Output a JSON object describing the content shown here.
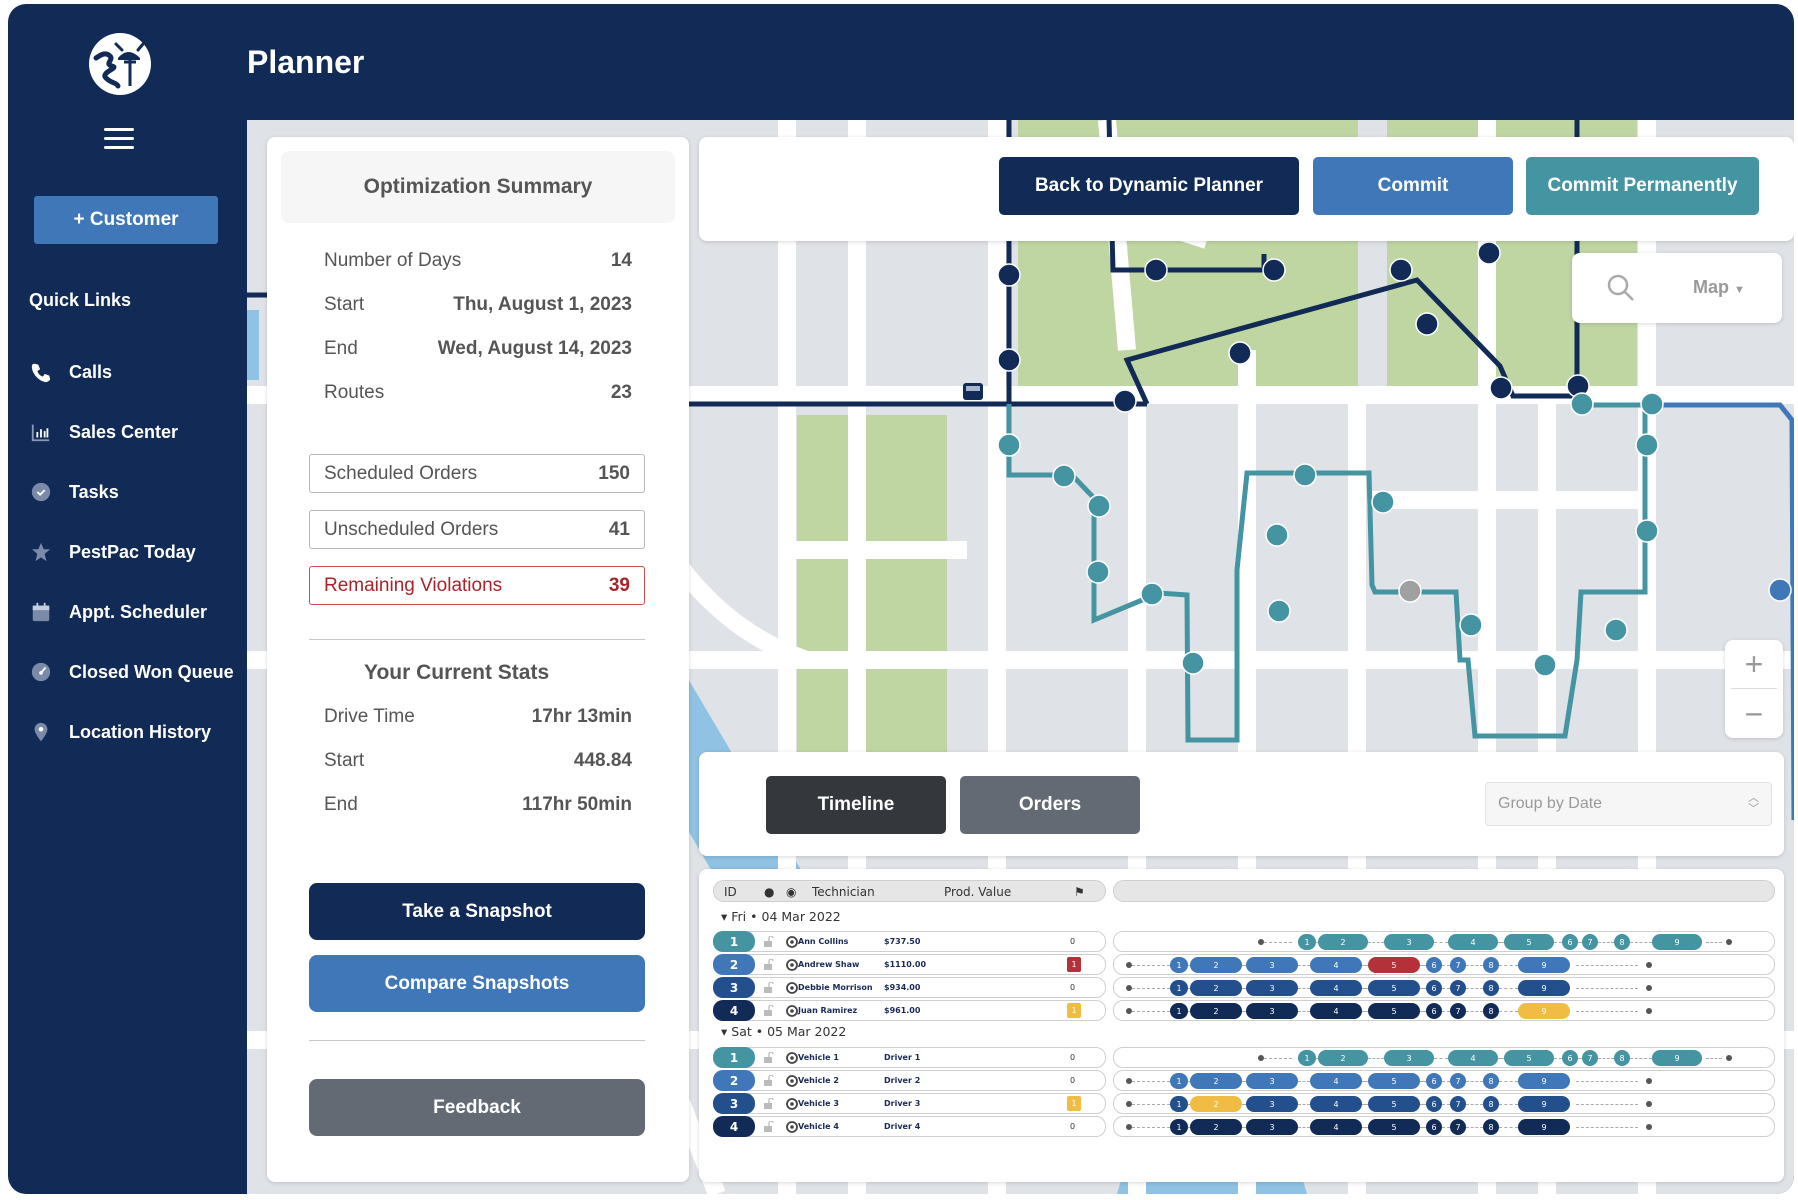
{
  "app": {
    "title": "Planner"
  },
  "sidebar": {
    "customer_button": "+ Customer",
    "quick_links_title": "Quick Links",
    "items": [
      {
        "label": "Calls",
        "icon": "phone-icon"
      },
      {
        "label": "Sales Center",
        "icon": "bar-chart-icon"
      },
      {
        "label": "Tasks",
        "icon": "check-circle-icon"
      },
      {
        "label": "PestPac Today",
        "icon": "star-icon"
      },
      {
        "label": "Appt. Scheduler",
        "icon": "calendar-icon"
      },
      {
        "label": "Closed Won Queue",
        "icon": "gauge-icon"
      },
      {
        "label": "Location History",
        "icon": "map-pin-icon"
      }
    ]
  },
  "summary": {
    "title": "Optimization Summary",
    "rows": [
      {
        "label": "Number of Days",
        "value": "14"
      },
      {
        "label": "Start",
        "value": "Thu, August 1, 2023"
      },
      {
        "label": "End",
        "value": "Wed, August 14, 2023"
      },
      {
        "label": "Routes",
        "value": "23"
      }
    ],
    "boxes": [
      {
        "label": "Scheduled Orders",
        "value": "150"
      },
      {
        "label": "Unscheduled Orders",
        "value": "41"
      },
      {
        "label": "Remaining Violations",
        "value": "39"
      }
    ],
    "stats_title": "Your Current Stats",
    "stats": [
      {
        "label": "Drive Time",
        "value": "17hr 13min"
      },
      {
        "label": "Start",
        "value": "448.84"
      },
      {
        "label": "End",
        "value": "117hr 50min"
      }
    ],
    "take_snapshot": "Take a Snapshot",
    "compare_snapshots": "Compare Snapshots",
    "feedback": "Feedback"
  },
  "toolbar": {
    "back": "Back to Dynamic Planner",
    "commit": "Commit",
    "commit_permanently": "Commit Permanently"
  },
  "map_controls": {
    "layer_label": "Map",
    "zoom_in": "+",
    "zoom_out": "−"
  },
  "tabs": {
    "timeline": "Timeline",
    "orders": "Orders",
    "group_by_placeholder": "Group by Date"
  },
  "table": {
    "headers": {
      "id": "ID",
      "technician": "Technician",
      "prod_value": "Prod. Value"
    },
    "groups": [
      {
        "day": "Fri",
        "date": "04 Mar 2022",
        "rows": [
          {
            "id": "1",
            "name": "Ann Collins",
            "value": "$737.50",
            "flag": "0"
          },
          {
            "id": "2",
            "name": "Andrew Shaw",
            "value": "$1110.00",
            "flag": "1"
          },
          {
            "id": "3",
            "name": "Debbie Morrison",
            "value": "$934.00",
            "flag": "0"
          },
          {
            "id": "4",
            "name": "Juan Ramirez",
            "value": "$961.00",
            "flag": "1"
          }
        ]
      },
      {
        "day": "Sat",
        "date": "05 Mar 2022",
        "rows": [
          {
            "id": "1",
            "name": "Vehicle 1",
            "value": "Driver 1",
            "flag": "0"
          },
          {
            "id": "2",
            "name": "Vehicle 2",
            "value": "Driver 2",
            "flag": "0"
          },
          {
            "id": "3",
            "name": "Vehicle 3",
            "value": "Driver 3",
            "flag": "1"
          },
          {
            "id": "4",
            "name": "Vehicle 4",
            "value": "Driver 4",
            "flag": "0"
          }
        ]
      }
    ],
    "stops": [
      "1",
      "2",
      "3",
      "4",
      "5",
      "6",
      "7",
      "8",
      "9"
    ]
  },
  "colors": {
    "navy": "#112a56",
    "blue": "#4077b8",
    "mid_blue": "#23508c",
    "teal": "#4594a2",
    "red": "#b3323a",
    "amber": "#f0bc44",
    "gray_btn": "#646a73",
    "dark_btn": "#34383d"
  }
}
